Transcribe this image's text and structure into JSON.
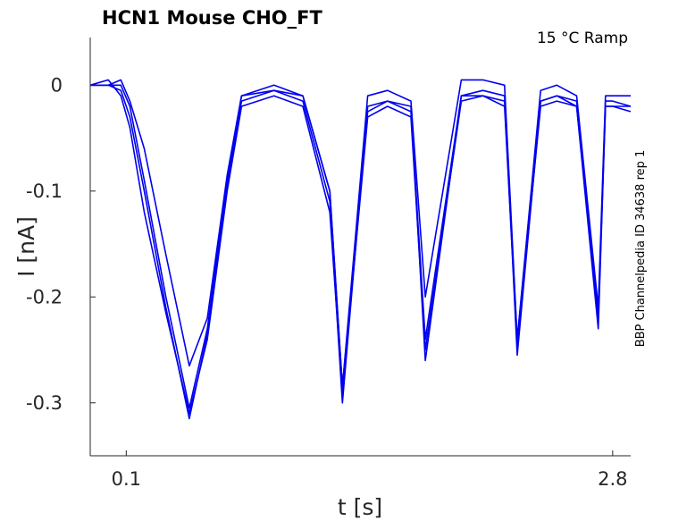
{
  "chart_data": {
    "type": "line",
    "title": "HCN1  Mouse  CHO_FT",
    "annotation": "15 °C  Ramp",
    "side_label": "BBP Channelpedia ID 34638 rep 1",
    "xlabel": "t [s]",
    "ylabel": "I [nA]",
    "xlim": [
      -0.1,
      2.9
    ],
    "ylim": [
      -0.35,
      0.045
    ],
    "x_ticks": [
      0.1,
      2.8
    ],
    "x_tick_labels": [
      "0.1",
      "2.8"
    ],
    "y_ticks": [
      0,
      -0.1,
      -0.2,
      -0.3
    ],
    "y_tick_labels": [
      "0",
      "-0.1",
      "-0.2",
      "-0.3"
    ],
    "grid": false,
    "line_color": "#0000ee",
    "series": [
      {
        "x": [
          -0.1,
          0.0,
          0.07,
          0.12,
          0.2,
          0.32,
          0.45,
          0.55,
          0.66,
          0.74,
          0.92,
          1.08,
          1.23,
          1.3,
          1.44,
          1.55,
          1.68,
          1.76,
          1.96,
          2.08,
          2.2,
          2.27,
          2.4,
          2.49,
          2.6,
          2.72,
          2.76,
          2.8,
          2.9
        ],
        "y": [
          0.0,
          0.0,
          0.0,
          -0.02,
          -0.09,
          -0.2,
          -0.305,
          -0.23,
          -0.09,
          -0.01,
          0.0,
          -0.01,
          -0.1,
          -0.285,
          -0.01,
          -0.005,
          -0.015,
          -0.2,
          0.005,
          0.005,
          0.0,
          -0.24,
          -0.005,
          0.0,
          -0.01,
          -0.21,
          -0.01,
          -0.01,
          -0.01
        ]
      },
      {
        "x": [
          -0.1,
          0.0,
          0.07,
          0.12,
          0.2,
          0.32,
          0.45,
          0.55,
          0.66,
          0.74,
          0.92,
          1.08,
          1.23,
          1.3,
          1.44,
          1.55,
          1.68,
          1.76,
          1.96,
          2.08,
          2.2,
          2.27,
          2.4,
          2.49,
          2.6,
          2.72,
          2.76,
          2.8,
          2.9
        ],
        "y": [
          0.0,
          0.0,
          -0.005,
          -0.03,
          -0.1,
          -0.21,
          -0.315,
          -0.235,
          -0.095,
          -0.015,
          -0.005,
          -0.015,
          -0.11,
          -0.3,
          -0.02,
          -0.015,
          -0.02,
          -0.26,
          -0.01,
          -0.005,
          -0.01,
          -0.255,
          -0.015,
          -0.01,
          -0.02,
          -0.23,
          -0.02,
          -0.02,
          -0.02
        ]
      },
      {
        "x": [
          -0.1,
          0.0,
          0.07,
          0.12,
          0.2,
          0.32,
          0.45,
          0.55,
          0.66,
          0.74,
          0.92,
          1.08,
          1.23,
          1.3,
          1.44,
          1.55,
          1.68,
          1.76,
          1.96,
          2.08,
          2.2,
          2.27,
          2.4,
          2.49,
          2.6,
          2.72,
          2.76,
          2.8,
          2.9
        ],
        "y": [
          0.0,
          0.005,
          -0.01,
          -0.04,
          -0.12,
          -0.215,
          -0.31,
          -0.24,
          -0.1,
          -0.02,
          -0.01,
          -0.02,
          -0.12,
          -0.29,
          -0.03,
          -0.02,
          -0.03,
          -0.25,
          -0.015,
          -0.01,
          -0.02,
          -0.245,
          -0.02,
          -0.015,
          -0.02,
          -0.22,
          -0.02,
          -0.02,
          -0.025
        ]
      },
      {
        "x": [
          -0.1,
          0.0,
          0.07,
          0.12,
          0.2,
          0.32,
          0.45,
          0.55,
          0.66,
          0.74,
          0.92,
          1.08,
          1.23,
          1.3,
          1.44,
          1.55,
          1.68,
          1.76,
          1.96,
          2.08,
          2.2,
          2.27,
          2.4,
          2.49,
          2.6,
          2.72,
          2.76,
          2.8,
          2.9
        ],
        "y": [
          0.0,
          0.0,
          0.005,
          -0.015,
          -0.06,
          -0.16,
          -0.265,
          -0.22,
          -0.085,
          -0.01,
          -0.005,
          -0.01,
          -0.1,
          -0.285,
          -0.025,
          -0.015,
          -0.025,
          -0.24,
          -0.01,
          -0.01,
          -0.015,
          -0.24,
          -0.015,
          -0.01,
          -0.015,
          -0.22,
          -0.015,
          -0.015,
          -0.02
        ]
      }
    ]
  }
}
